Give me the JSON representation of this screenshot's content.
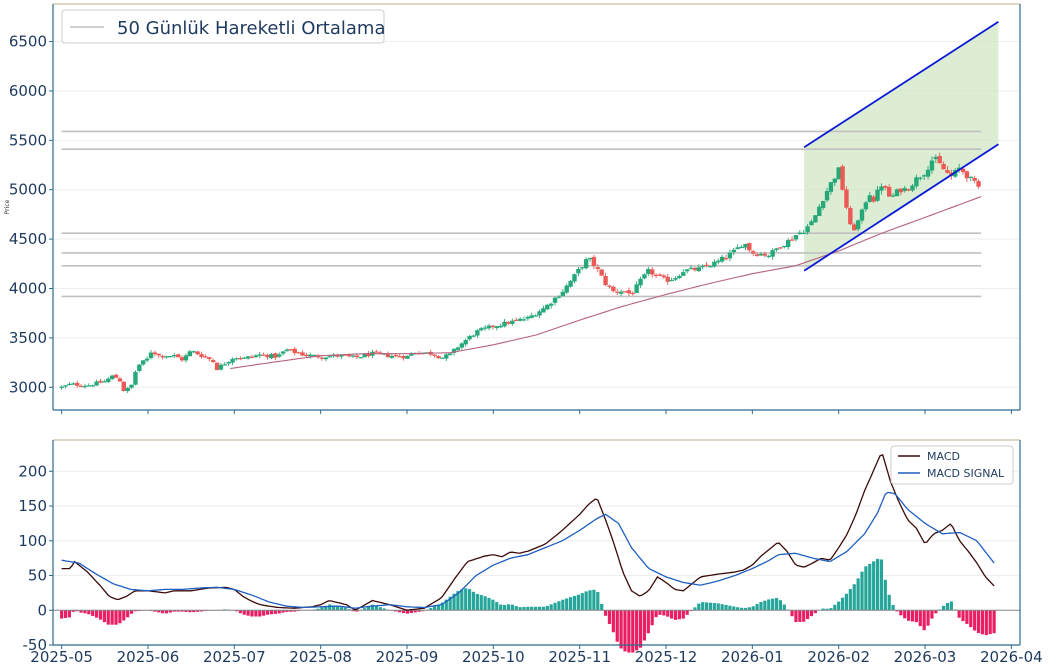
{
  "chart_data": [
    {
      "type": "candlestick",
      "ylabel": "Price",
      "ylim": [
        2770,
        6880
      ],
      "y_ticks": [
        3000,
        3500,
        4000,
        4500,
        5000,
        5500,
        6000,
        6500
      ],
      "x_ticks": [
        "2025-05",
        "2025-06",
        "2025-07",
        "2025-08",
        "2025-09",
        "2025-10",
        "2025-11",
        "2025-12",
        "2026-01",
        "2026-02",
        "2026-03",
        "2026-04"
      ],
      "xlim_months": [
        -0.1,
        11.1
      ],
      "last_month_index": 10.0,
      "legend": {
        "label": "50 Günlük Hareketli Ortalama",
        "position": "upper-left"
      },
      "close_anchors": [
        [
          0.0,
          3000
        ],
        [
          0.1,
          3030
        ],
        [
          0.3,
          3020
        ],
        [
          0.5,
          3060
        ],
        [
          0.6,
          3120
        ],
        [
          0.7,
          3050
        ],
        [
          0.72,
          2970
        ],
        [
          0.8,
          2990
        ],
        [
          0.85,
          3150
        ],
        [
          0.9,
          3230
        ],
        [
          1.0,
          3290
        ],
        [
          1.05,
          3390
        ],
        [
          1.1,
          3320
        ],
        [
          1.3,
          3320
        ],
        [
          1.4,
          3280
        ],
        [
          1.5,
          3370
        ],
        [
          1.6,
          3330
        ],
        [
          1.75,
          3270
        ],
        [
          1.8,
          3190
        ],
        [
          1.9,
          3250
        ],
        [
          2.0,
          3310
        ],
        [
          2.1,
          3290
        ],
        [
          2.3,
          3330
        ],
        [
          2.5,
          3310
        ],
        [
          2.6,
          3380
        ],
        [
          2.8,
          3330
        ],
        [
          3.0,
          3310
        ],
        [
          3.2,
          3320
        ],
        [
          3.4,
          3300
        ],
        [
          3.6,
          3340
        ],
        [
          3.8,
          3320
        ],
        [
          4.0,
          3310
        ],
        [
          4.1,
          3360
        ],
        [
          4.3,
          3340
        ],
        [
          4.4,
          3300
        ],
        [
          4.5,
          3330
        ],
        [
          4.6,
          3420
        ],
        [
          4.8,
          3560
        ],
        [
          5.0,
          3620
        ],
        [
          5.2,
          3660
        ],
        [
          5.4,
          3700
        ],
        [
          5.6,
          3810
        ],
        [
          5.8,
          3970
        ],
        [
          5.9,
          4080
        ],
        [
          6.0,
          4200
        ],
        [
          6.1,
          4310
        ],
        [
          6.2,
          4200
        ],
        [
          6.3,
          4050
        ],
        [
          6.4,
          3960
        ],
        [
          6.5,
          3980
        ],
        [
          6.6,
          3940
        ],
        [
          6.7,
          4070
        ],
        [
          6.8,
          4180
        ],
        [
          6.9,
          4120
        ],
        [
          7.0,
          4080
        ],
        [
          7.1,
          4110
        ],
        [
          7.2,
          4180
        ],
        [
          7.4,
          4200
        ],
        [
          7.6,
          4270
        ],
        [
          7.8,
          4380
        ],
        [
          7.9,
          4470
        ],
        [
          8.0,
          4360
        ],
        [
          8.2,
          4340
        ],
        [
          8.3,
          4420
        ],
        [
          8.4,
          4470
        ],
        [
          8.5,
          4540
        ],
        [
          8.6,
          4590
        ],
        [
          8.7,
          4680
        ],
        [
          8.8,
          4880
        ],
        [
          8.9,
          5050
        ],
        [
          9.0,
          5200
        ],
        [
          9.1,
          4780
        ],
        [
          9.15,
          4560
        ],
        [
          9.25,
          4720
        ],
        [
          9.35,
          4980
        ],
        [
          9.4,
          4890
        ],
        [
          9.5,
          5060
        ],
        [
          9.6,
          4910
        ],
        [
          9.7,
          5000
        ],
        [
          9.8,
          5010
        ],
        [
          9.9,
          5110
        ],
        [
          10.0,
          5180
        ],
        [
          10.1,
          5330
        ],
        [
          10.2,
          5220
        ],
        [
          10.3,
          5130
        ],
        [
          10.4,
          5220
        ],
        [
          10.5,
          5130
        ],
        [
          10.58,
          5060
        ],
        [
          10.65,
          5000
        ]
      ],
      "moving_average_anchors": [
        [
          1.95,
          3190
        ],
        [
          2.5,
          3260
        ],
        [
          3.0,
          3320
        ],
        [
          3.5,
          3340
        ],
        [
          4.0,
          3340
        ],
        [
          4.5,
          3350
        ],
        [
          5.0,
          3430
        ],
        [
          5.5,
          3530
        ],
        [
          6.0,
          3680
        ],
        [
          6.5,
          3820
        ],
        [
          7.0,
          3940
        ],
        [
          7.5,
          4050
        ],
        [
          8.0,
          4150
        ],
        [
          8.5,
          4230
        ],
        [
          9.0,
          4380
        ],
        [
          9.5,
          4560
        ],
        [
          10.0,
          4720
        ],
        [
          10.65,
          4930
        ]
      ],
      "horizontal_levels": [
        5590,
        5410,
        4560,
        4360,
        4230,
        3920
      ],
      "horizontal_levels_span_months": [
        0.0,
        10.65
      ],
      "channel": {
        "x_range_months": [
          8.6,
          10.85
        ],
        "upper_line": [
          [
            8.6,
            5430
          ],
          [
            10.85,
            6700
          ]
        ],
        "lower_line": [
          [
            8.6,
            4180
          ],
          [
            10.85,
            5460
          ]
        ],
        "fill_color": "#cfe6c2",
        "line_color": "#0a1bd6"
      },
      "colors": {
        "up": "#26a878",
        "down": "#ec5a55",
        "moving_average": "#b5637e",
        "levels": "#c0c0c0",
        "axis": "#2d6a8f",
        "tick_text": "#1f3a5f",
        "top_border": "#cdbf9f"
      }
    },
    {
      "type": "line+bar",
      "ylim": [
        -50,
        245
      ],
      "y_ticks": [
        -50,
        0,
        50,
        100,
        150,
        200
      ],
      "legend": {
        "position": "upper-right"
      },
      "series": [
        {
          "name": "MACD",
          "color": "#3c0a0a",
          "anchors": [
            [
              0.0,
              60
            ],
            [
              0.1,
              60
            ],
            [
              0.15,
              70
            ],
            [
              0.3,
              55
            ],
            [
              0.45,
              35
            ],
            [
              0.55,
              20
            ],
            [
              0.65,
              15
            ],
            [
              0.75,
              20
            ],
            [
              0.85,
              28
            ],
            [
              1.0,
              28
            ],
            [
              1.2,
              25
            ],
            [
              1.3,
              28
            ],
            [
              1.5,
              28
            ],
            [
              1.7,
              32
            ],
            [
              1.9,
              33
            ],
            [
              2.0,
              30
            ],
            [
              2.1,
              20
            ],
            [
              2.2,
              13
            ],
            [
              2.3,
              8
            ],
            [
              2.5,
              4
            ],
            [
              2.7,
              3
            ],
            [
              2.9,
              5
            ],
            [
              3.0,
              8
            ],
            [
              3.1,
              14
            ],
            [
              3.3,
              8
            ],
            [
              3.4,
              0
            ],
            [
              3.6,
              14
            ],
            [
              3.8,
              8
            ],
            [
              4.0,
              0
            ],
            [
              4.2,
              3
            ],
            [
              4.4,
              18
            ],
            [
              4.55,
              45
            ],
            [
              4.7,
              70
            ],
            [
              4.9,
              78
            ],
            [
              5.0,
              80
            ],
            [
              5.1,
              77
            ],
            [
              5.2,
              84
            ],
            [
              5.3,
              82
            ],
            [
              5.4,
              85
            ],
            [
              5.6,
              95
            ],
            [
              5.8,
              115
            ],
            [
              6.0,
              138
            ],
            [
              6.1,
              152
            ],
            [
              6.2,
              162
            ],
            [
              6.3,
              130
            ],
            [
              6.4,
              95
            ],
            [
              6.5,
              55
            ],
            [
              6.6,
              28
            ],
            [
              6.7,
              20
            ],
            [
              6.8,
              28
            ],
            [
              6.9,
              48
            ],
            [
              7.0,
              40
            ],
            [
              7.1,
              30
            ],
            [
              7.2,
              28
            ],
            [
              7.3,
              38
            ],
            [
              7.4,
              48
            ],
            [
              7.6,
              52
            ],
            [
              7.8,
              55
            ],
            [
              7.9,
              58
            ],
            [
              8.0,
              65
            ],
            [
              8.1,
              78
            ],
            [
              8.2,
              88
            ],
            [
              8.3,
              98
            ],
            [
              8.4,
              85
            ],
            [
              8.5,
              65
            ],
            [
              8.6,
              62
            ],
            [
              8.7,
              68
            ],
            [
              8.8,
              75
            ],
            [
              8.9,
              72
            ],
            [
              9.0,
              90
            ],
            [
              9.1,
              110
            ],
            [
              9.2,
              138
            ],
            [
              9.3,
              172
            ],
            [
              9.4,
              200
            ],
            [
              9.5,
              228
            ],
            [
              9.6,
              185
            ],
            [
              9.7,
              155
            ],
            [
              9.8,
              130
            ],
            [
              9.9,
              118
            ],
            [
              10.0,
              95
            ],
            [
              10.1,
              110
            ],
            [
              10.2,
              115
            ],
            [
              10.3,
              125
            ],
            [
              10.4,
              100
            ],
            [
              10.5,
              85
            ],
            [
              10.6,
              68
            ],
            [
              10.7,
              48
            ],
            [
              10.8,
              35
            ]
          ]
        },
        {
          "name": "MACD SIGNAL",
          "color": "#1f5fbf",
          "anchors": [
            [
              0.0,
              72
            ],
            [
              0.2,
              68
            ],
            [
              0.4,
              52
            ],
            [
              0.6,
              38
            ],
            [
              0.8,
              30
            ],
            [
              1.0,
              28
            ],
            [
              1.2,
              30
            ],
            [
              1.4,
              30
            ],
            [
              1.6,
              32
            ],
            [
              1.8,
              33
            ],
            [
              2.0,
              30
            ],
            [
              2.2,
              22
            ],
            [
              2.4,
              12
            ],
            [
              2.6,
              6
            ],
            [
              2.8,
              4
            ],
            [
              3.0,
              5
            ],
            [
              3.2,
              6
            ],
            [
              3.4,
              3
            ],
            [
              3.6,
              6
            ],
            [
              3.8,
              8
            ],
            [
              4.0,
              5
            ],
            [
              4.2,
              4
            ],
            [
              4.4,
              8
            ],
            [
              4.6,
              25
            ],
            [
              4.8,
              50
            ],
            [
              5.0,
              65
            ],
            [
              5.2,
              75
            ],
            [
              5.4,
              80
            ],
            [
              5.6,
              90
            ],
            [
              5.8,
              100
            ],
            [
              6.0,
              115
            ],
            [
              6.2,
              132
            ],
            [
              6.3,
              138
            ],
            [
              6.45,
              125
            ],
            [
              6.6,
              90
            ],
            [
              6.8,
              60
            ],
            [
              7.0,
              48
            ],
            [
              7.2,
              40
            ],
            [
              7.4,
              36
            ],
            [
              7.6,
              42
            ],
            [
              7.8,
              50
            ],
            [
              8.0,
              60
            ],
            [
              8.2,
              72
            ],
            [
              8.3,
              80
            ],
            [
              8.5,
              82
            ],
            [
              8.7,
              75
            ],
            [
              8.9,
              70
            ],
            [
              9.1,
              85
            ],
            [
              9.3,
              110
            ],
            [
              9.45,
              140
            ],
            [
              9.55,
              170
            ],
            [
              9.65,
              168
            ],
            [
              9.8,
              145
            ],
            [
              10.0,
              125
            ],
            [
              10.2,
              110
            ],
            [
              10.4,
              112
            ],
            [
              10.6,
              100
            ],
            [
              10.8,
              68
            ]
          ]
        }
      ],
      "histogram": {
        "positive_color": "#26a69a",
        "negative_color": "#e91e63",
        "note": "histogram = MACD - MACD SIGNAL per day"
      },
      "colors": {
        "axis": "#2d6a8f",
        "tick_text": "#1f3a5f",
        "top_border": "#cdbf9f",
        "zero_line": "#888888"
      }
    }
  ]
}
